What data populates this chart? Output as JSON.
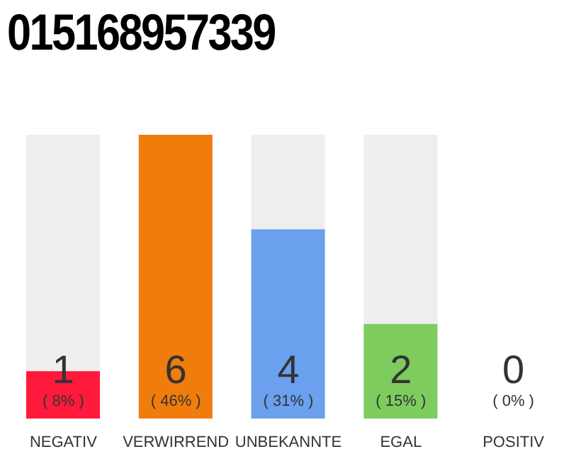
{
  "chart_data": {
    "type": "bar",
    "title": "015168957339",
    "categories": [
      "NEGATIV",
      "VERWIRREND",
      "UNBEKANNTE",
      "EGAL",
      "POSITIV"
    ],
    "values": [
      1,
      6,
      4,
      2,
      0
    ],
    "colors": [
      "#ff1a3c",
      "#f07c0c",
      "#6aa0ee",
      "#7ecb5e",
      "#dddddd"
    ],
    "data_labels": true,
    "annotations": [
      "( 8% )",
      "( 46% )",
      "( 31% )",
      "( 15% )",
      "( 0% )"
    ],
    "grid": false,
    "legend": false
  }
}
